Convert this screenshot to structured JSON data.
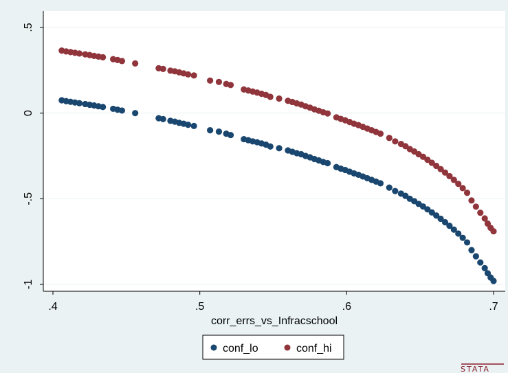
{
  "chart_data": {
    "type": "scatter",
    "title": "",
    "xlabel": "corr_errs_vs_Infracschool",
    "ylabel": "",
    "xlim": [
      0.4,
      0.7
    ],
    "ylim": [
      -1,
      0.5
    ],
    "x_ticks": [
      {
        "value": 0.4,
        "label": ".4"
      },
      {
        "value": 0.5,
        "label": ".5"
      },
      {
        "value": 0.6,
        "label": ".6"
      },
      {
        "value": 0.7,
        "label": ".7"
      }
    ],
    "y_ticks": [
      {
        "value": 0.5,
        "label": ".5"
      },
      {
        "value": 0,
        "label": "0"
      },
      {
        "value": -0.5,
        "label": "-.5"
      },
      {
        "value": -1,
        "label": "-1"
      }
    ],
    "grid": "horizontal",
    "legend_position": "bottom",
    "series": [
      {
        "name": "conf_lo",
        "color": "#1a476f",
        "points": [
          [
            0.406,
            0.075
          ],
          [
            0.409,
            0.07
          ],
          [
            0.412,
            0.066
          ],
          [
            0.415,
            0.062
          ],
          [
            0.418,
            0.058
          ],
          [
            0.422,
            0.053
          ],
          [
            0.425,
            0.049
          ],
          [
            0.428,
            0.045
          ],
          [
            0.431,
            0.04
          ],
          [
            0.434,
            0.036
          ],
          [
            0.441,
            0.025
          ],
          [
            0.444,
            0.02
          ],
          [
            0.447,
            0.015
          ],
          [
            0.456,
            0.0
          ],
          [
            0.472,
            -0.03
          ],
          [
            0.475,
            -0.035
          ],
          [
            0.48,
            -0.045
          ],
          [
            0.483,
            -0.05
          ],
          [
            0.486,
            -0.057
          ],
          [
            0.489,
            -0.062
          ],
          [
            0.492,
            -0.068
          ],
          [
            0.496,
            -0.075
          ],
          [
            0.507,
            -0.1
          ],
          [
            0.513,
            -0.108
          ],
          [
            0.518,
            -0.12
          ],
          [
            0.521,
            -0.128
          ],
          [
            0.53,
            -0.152
          ],
          [
            0.533,
            -0.158
          ],
          [
            0.536,
            -0.165
          ],
          [
            0.539,
            -0.17
          ],
          [
            0.542,
            -0.177
          ],
          [
            0.545,
            -0.184
          ],
          [
            0.548,
            -0.195
          ],
          [
            0.554,
            -0.205
          ],
          [
            0.56,
            -0.218
          ],
          [
            0.563,
            -0.226
          ],
          [
            0.566,
            -0.234
          ],
          [
            0.569,
            -0.24
          ],
          [
            0.572,
            -0.25
          ],
          [
            0.575,
            -0.258
          ],
          [
            0.578,
            -0.268
          ],
          [
            0.581,
            -0.276
          ],
          [
            0.584,
            -0.285
          ],
          [
            0.587,
            -0.292
          ],
          [
            0.593,
            -0.315
          ],
          [
            0.596,
            -0.324
          ],
          [
            0.599,
            -0.332
          ],
          [
            0.602,
            -0.342
          ],
          [
            0.605,
            -0.352
          ],
          [
            0.608,
            -0.36
          ],
          [
            0.611,
            -0.37
          ],
          [
            0.614,
            -0.38
          ],
          [
            0.617,
            -0.39
          ],
          [
            0.62,
            -0.4
          ],
          [
            0.623,
            -0.41
          ],
          [
            0.629,
            -0.435
          ],
          [
            0.633,
            -0.455
          ],
          [
            0.637,
            -0.47
          ],
          [
            0.64,
            -0.483
          ],
          [
            0.643,
            -0.5
          ],
          [
            0.646,
            -0.514
          ],
          [
            0.649,
            -0.53
          ],
          [
            0.652,
            -0.545
          ],
          [
            0.655,
            -0.562
          ],
          [
            0.658,
            -0.58
          ],
          [
            0.661,
            -0.598
          ],
          [
            0.664,
            -0.617
          ],
          [
            0.667,
            -0.637
          ],
          [
            0.67,
            -0.658
          ],
          [
            0.673,
            -0.68
          ],
          [
            0.676,
            -0.703
          ],
          [
            0.679,
            -0.728
          ],
          [
            0.682,
            -0.755
          ],
          [
            0.685,
            -0.8
          ],
          [
            0.688,
            -0.836
          ],
          [
            0.691,
            -0.872
          ],
          [
            0.694,
            -0.905
          ],
          [
            0.696,
            -0.935
          ],
          [
            0.698,
            -0.96
          ],
          [
            0.7,
            -0.98
          ]
        ]
      },
      {
        "name": "conf_hi",
        "color": "#90353b",
        "points": [
          [
            0.406,
            0.365
          ],
          [
            0.409,
            0.36
          ],
          [
            0.412,
            0.356
          ],
          [
            0.415,
            0.352
          ],
          [
            0.418,
            0.348
          ],
          [
            0.422,
            0.343
          ],
          [
            0.425,
            0.339
          ],
          [
            0.428,
            0.334
          ],
          [
            0.431,
            0.33
          ],
          [
            0.434,
            0.326
          ],
          [
            0.441,
            0.315
          ],
          [
            0.444,
            0.31
          ],
          [
            0.447,
            0.304
          ],
          [
            0.456,
            0.29
          ],
          [
            0.472,
            0.262
          ],
          [
            0.475,
            0.258
          ],
          [
            0.48,
            0.248
          ],
          [
            0.483,
            0.244
          ],
          [
            0.486,
            0.238
          ],
          [
            0.489,
            0.232
          ],
          [
            0.492,
            0.226
          ],
          [
            0.496,
            0.22
          ],
          [
            0.507,
            0.19
          ],
          [
            0.513,
            0.182
          ],
          [
            0.518,
            0.17
          ],
          [
            0.521,
            0.164
          ],
          [
            0.53,
            0.138
          ],
          [
            0.533,
            0.132
          ],
          [
            0.536,
            0.126
          ],
          [
            0.539,
            0.12
          ],
          [
            0.542,
            0.113
          ],
          [
            0.545,
            0.106
          ],
          [
            0.548,
            0.095
          ],
          [
            0.554,
            0.085
          ],
          [
            0.56,
            0.072
          ],
          [
            0.563,
            0.065
          ],
          [
            0.566,
            0.057
          ],
          [
            0.569,
            0.05
          ],
          [
            0.572,
            0.04
          ],
          [
            0.575,
            0.032
          ],
          [
            0.578,
            0.022
          ],
          [
            0.581,
            0.014
          ],
          [
            0.584,
            0.005
          ],
          [
            0.587,
            -0.002
          ],
          [
            0.593,
            -0.025
          ],
          [
            0.596,
            -0.034
          ],
          [
            0.599,
            -0.042
          ],
          [
            0.602,
            -0.052
          ],
          [
            0.605,
            -0.062
          ],
          [
            0.608,
            -0.07
          ],
          [
            0.611,
            -0.08
          ],
          [
            0.614,
            -0.09
          ],
          [
            0.617,
            -0.1
          ],
          [
            0.62,
            -0.11
          ],
          [
            0.623,
            -0.12
          ],
          [
            0.629,
            -0.145
          ],
          [
            0.633,
            -0.165
          ],
          [
            0.637,
            -0.18
          ],
          [
            0.64,
            -0.193
          ],
          [
            0.643,
            -0.21
          ],
          [
            0.646,
            -0.224
          ],
          [
            0.649,
            -0.24
          ],
          [
            0.652,
            -0.255
          ],
          [
            0.655,
            -0.272
          ],
          [
            0.658,
            -0.29
          ],
          [
            0.661,
            -0.308
          ],
          [
            0.664,
            -0.327
          ],
          [
            0.667,
            -0.347
          ],
          [
            0.67,
            -0.368
          ],
          [
            0.673,
            -0.39
          ],
          [
            0.676,
            -0.413
          ],
          [
            0.679,
            -0.438
          ],
          [
            0.682,
            -0.465
          ],
          [
            0.685,
            -0.51
          ],
          [
            0.688,
            -0.546
          ],
          [
            0.691,
            -0.582
          ],
          [
            0.694,
            -0.615
          ],
          [
            0.696,
            -0.645
          ],
          [
            0.698,
            -0.67
          ],
          [
            0.7,
            -0.69
          ]
        ]
      }
    ]
  },
  "legend": {
    "items": [
      {
        "label": "conf_lo",
        "color": "#1a476f"
      },
      {
        "label": "conf_hi",
        "color": "#90353b"
      }
    ]
  },
  "branding": {
    "logo_text": "STATA"
  }
}
